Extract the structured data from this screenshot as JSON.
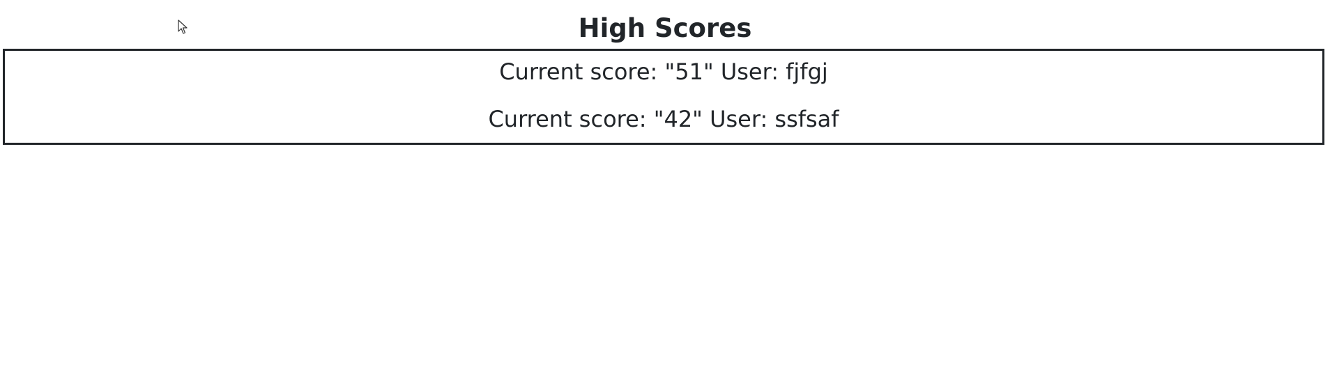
{
  "page": {
    "title": "High Scores"
  },
  "scores": [
    {
      "text": "Current score: \"51\" User: fjfgj"
    },
    {
      "text": "Current score: \"42\" User: ssfsaf"
    }
  ],
  "cursor": {
    "icon": "mouse-pointer-icon"
  }
}
